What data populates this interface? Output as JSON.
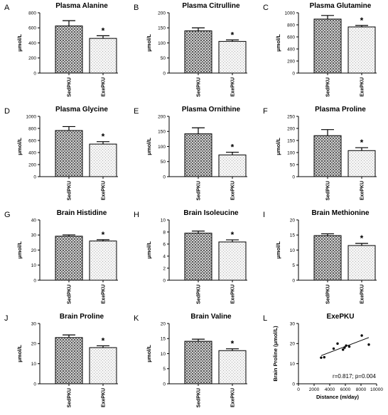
{
  "chart_data": [
    {
      "letter": "A",
      "type": "bar",
      "title": "Plasma Alanine",
      "ylabel": "μmol/L",
      "categories": [
        "SedPKU",
        "ExePKU"
      ],
      "values": [
        625,
        460
      ],
      "errors": [
        70,
        35
      ],
      "ylim": [
        0,
        800
      ],
      "yticks": [
        0,
        200,
        400,
        600,
        800
      ],
      "significance": [
        "",
        "*"
      ]
    },
    {
      "letter": "B",
      "type": "bar",
      "title": "Plasma Citrulline",
      "ylabel": "μmol/L",
      "categories": [
        "SedPKU",
        "ExePKU"
      ],
      "values": [
        140,
        105
      ],
      "errors": [
        10,
        5
      ],
      "ylim": [
        0,
        200
      ],
      "yticks": [
        0,
        50,
        100,
        150,
        200
      ],
      "significance": [
        "",
        "*"
      ]
    },
    {
      "letter": "C",
      "type": "bar",
      "title": "Plasma Glutamine",
      "ylabel": "μmol/L",
      "categories": [
        "SedPKU",
        "ExePKU"
      ],
      "values": [
        895,
        765
      ],
      "errors": [
        60,
        25
      ],
      "ylim": [
        0,
        1000
      ],
      "yticks": [
        0,
        200,
        400,
        600,
        800,
        1000
      ],
      "significance": [
        "",
        "*"
      ]
    },
    {
      "letter": "D",
      "type": "bar",
      "title": "Plasma Glycine",
      "ylabel": "μmol/L",
      "categories": [
        "SedPKU",
        "ExePKU"
      ],
      "values": [
        765,
        540
      ],
      "errors": [
        65,
        40
      ],
      "ylim": [
        0,
        1000
      ],
      "yticks": [
        0,
        200,
        400,
        600,
        800,
        1000
      ],
      "significance": [
        "",
        "*"
      ]
    },
    {
      "letter": "E",
      "type": "bar",
      "title": "Plasma Ornithine",
      "ylabel": "μmol/L",
      "categories": [
        "SedPKU",
        "ExePKU"
      ],
      "values": [
        142,
        72
      ],
      "errors": [
        20,
        9
      ],
      "ylim": [
        0,
        200
      ],
      "yticks": [
        0,
        50,
        100,
        150,
        200
      ],
      "significance": [
        "",
        "*"
      ]
    },
    {
      "letter": "F",
      "type": "bar",
      "title": "Plasma Proline",
      "ylabel": "μmol/L",
      "categories": [
        "SedPKU",
        "ExePKU"
      ],
      "values": [
        170,
        108
      ],
      "errors": [
        25,
        12
      ],
      "ylim": [
        0,
        250
      ],
      "yticks": [
        0,
        50,
        100,
        150,
        200,
        250
      ],
      "significance": [
        "",
        "*"
      ]
    },
    {
      "letter": "G",
      "type": "bar",
      "title": "Brain Histidine",
      "ylabel": "μmol/L",
      "categories": [
        "SedPKU",
        "ExePKU"
      ],
      "values": [
        29.2,
        26
      ],
      "errors": [
        0.9,
        0.9
      ],
      "ylim": [
        0,
        40
      ],
      "yticks": [
        0,
        10,
        20,
        30,
        40
      ],
      "significance": [
        "",
        "*"
      ]
    },
    {
      "letter": "H",
      "type": "bar",
      "title": "Brain Isoleucine",
      "ylabel": "μmol/L",
      "categories": [
        "SedPKU",
        "ExePKU"
      ],
      "values": [
        7.8,
        6.35
      ],
      "errors": [
        0.35,
        0.35
      ],
      "ylim": [
        0,
        10
      ],
      "yticks": [
        0,
        2,
        4,
        6,
        8,
        10
      ],
      "significance": [
        "",
        "*"
      ]
    },
    {
      "letter": "I",
      "type": "bar",
      "title": "Brain Methionine",
      "ylabel": "μmol/L",
      "categories": [
        "SedPKU",
        "ExePKU"
      ],
      "values": [
        14.8,
        11.5
      ],
      "errors": [
        0.6,
        0.7
      ],
      "ylim": [
        0,
        20
      ],
      "yticks": [
        0,
        5,
        10,
        15,
        20
      ],
      "significance": [
        "",
        "*"
      ]
    },
    {
      "letter": "J",
      "type": "bar",
      "title": "Brain Proline",
      "ylabel": "μmol/L",
      "categories": [
        "SedPKU",
        "ExePKU"
      ],
      "values": [
        23,
        18
      ],
      "errors": [
        1.3,
        0.9
      ],
      "ylim": [
        0,
        30
      ],
      "yticks": [
        0,
        10,
        20,
        30
      ],
      "significance": [
        "",
        "*"
      ]
    },
    {
      "letter": "K",
      "type": "bar",
      "title": "Brain Valine",
      "ylabel": "μmol/L",
      "categories": [
        "SedPKU",
        "ExePKU"
      ],
      "values": [
        14.1,
        11
      ],
      "errors": [
        0.7,
        0.6
      ],
      "ylim": [
        0,
        20
      ],
      "yticks": [
        0,
        5,
        10,
        15,
        20
      ],
      "significance": [
        "",
        "*"
      ]
    },
    {
      "letter": "L",
      "type": "scatter",
      "title": "ExePKU",
      "xlabel": "Distance (m/day)",
      "ylabel": "Brain Proline (μmol/L)",
      "xlim": [
        0,
        10000
      ],
      "ylim": [
        0,
        30
      ],
      "xticks": [
        0,
        2000,
        4000,
        6000,
        8000,
        10000
      ],
      "yticks": [
        0,
        10,
        20,
        30
      ],
      "x": [
        2900,
        3300,
        4500,
        5000,
        5700,
        5900,
        6100,
        6500,
        8100,
        9000
      ],
      "y": [
        13,
        13.2,
        17.5,
        20,
        17,
        18,
        19,
        18.5,
        24,
        19.5
      ],
      "fit": {
        "x": [
          2900,
          9000
        ],
        "y": [
          14,
          23
        ]
      },
      "annotation": "r=0.817; p=0.004"
    }
  ]
}
